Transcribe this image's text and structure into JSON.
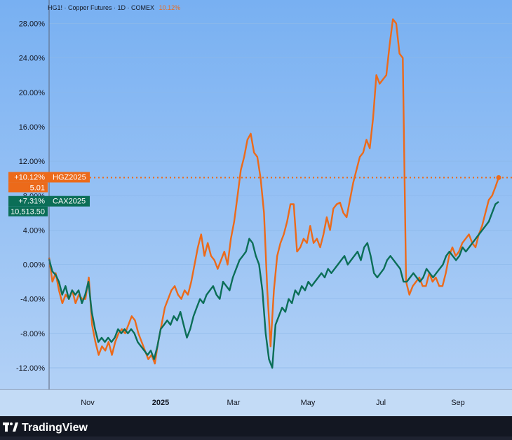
{
  "header": {
    "symbol": "HG1! · Copper Futures · 1D · COMEX",
    "change": "10.12%"
  },
  "brand": "TradingView",
  "colors": {
    "bg_top": "#78b0f2",
    "bg_bottom": "#b6d3f6",
    "hgz": "#ec6a1a",
    "cax": "#0b6e57",
    "grid": "#8db8ea",
    "axis_text": "#131722"
  },
  "labels": {
    "hgz": {
      "pct": "+10.12%",
      "name": "HGZ2025",
      "price": "5.01"
    },
    "cax": {
      "pct": "+7.31%",
      "name": "CAX2025",
      "price": "10,513.50"
    }
  },
  "chart_data": {
    "type": "line",
    "x_ticks": [
      "Nov",
      "2025",
      "Mar",
      "May",
      "Jul",
      "Sep"
    ],
    "y_ticks": [
      "28.00%",
      "24.00%",
      "20.00%",
      "16.00%",
      "12.00%",
      "8.00%",
      "4.00%",
      "0.00%",
      "-4.00%",
      "-8.00%",
      "-12.00%"
    ],
    "ylim": [
      -14.3,
      30.3
    ],
    "series": [
      {
        "name": "HGZ2025",
        "values": [
          0.8,
          -2.0,
          -1.0,
          -3.0,
          -4.5,
          -3.5,
          -4.0,
          -3.0,
          -4.5,
          -3.5,
          -4.0,
          -4.0,
          -1.5,
          -7.0,
          -9.0,
          -10.5,
          -9.5,
          -10.0,
          -9.0,
          -10.5,
          -9.0,
          -8.0,
          -7.5,
          -8.0,
          -7.0,
          -6.0,
          -6.5,
          -8.0,
          -9.0,
          -10.0,
          -11.0,
          -10.5,
          -11.5,
          -9.0,
          -7.0,
          -5.0,
          -4.0,
          -3.0,
          -2.5,
          -3.5,
          -4.0,
          -3.0,
          -3.5,
          -2.0,
          0.0,
          2.0,
          3.5,
          1.0,
          2.5,
          1.0,
          0.5,
          -0.5,
          0.5,
          1.5,
          0.0,
          3.0,
          5.0,
          8.0,
          11.0,
          12.5,
          14.5,
          15.2,
          13.0,
          12.5,
          10.0,
          6.0,
          -3.0,
          -9.5,
          -3.0,
          1.0,
          2.5,
          3.5,
          5.0,
          7.0,
          7.0,
          1.5,
          2.0,
          3.0,
          2.5,
          4.5,
          2.5,
          3.0,
          2.0,
          3.5,
          5.5,
          4.0,
          6.5,
          7.0,
          7.2,
          6.0,
          5.5,
          7.5,
          9.5,
          11.0,
          12.5,
          13.0,
          14.5,
          13.5,
          17.0,
          22.0,
          21.0,
          21.5,
          22.0,
          25.5,
          28.5,
          28.0,
          24.5,
          24.0,
          -2.0,
          -3.5,
          -2.5,
          -2.0,
          -1.5,
          -2.5,
          -2.5,
          -1.0,
          -2.0,
          -1.5,
          -2.5,
          -2.5,
          -1.0,
          1.0,
          2.0,
          1.0,
          1.5,
          2.5,
          3.0,
          3.5,
          2.5,
          2.0,
          3.5,
          4.5,
          6.0,
          7.5,
          8.0,
          9.0,
          10.1
        ]
      },
      {
        "name": "CAX2025",
        "values": [
          0.6,
          -0.8,
          -1.2,
          -2.0,
          -3.5,
          -2.5,
          -4.0,
          -3.0,
          -3.5,
          -3.0,
          -4.5,
          -3.5,
          -2.0,
          -5.5,
          -7.5,
          -9.0,
          -8.5,
          -9.0,
          -8.5,
          -9.0,
          -8.5,
          -7.5,
          -8.0,
          -7.5,
          -8.0,
          -7.5,
          -8.0,
          -9.0,
          -9.5,
          -10.0,
          -10.5,
          -10.0,
          -11.0,
          -9.5,
          -7.5,
          -7.0,
          -6.5,
          -7.0,
          -6.0,
          -6.5,
          -5.5,
          -7.0,
          -8.5,
          -7.5,
          -6.0,
          -5.0,
          -4.0,
          -4.5,
          -3.5,
          -3.0,
          -2.5,
          -3.5,
          -4.0,
          -2.0,
          -2.5,
          -3.0,
          -1.5,
          -0.5,
          0.5,
          1.0,
          1.5,
          3.0,
          2.5,
          1.0,
          0.0,
          -3.0,
          -8.0,
          -11.0,
          -12.0,
          -7.0,
          -6.0,
          -5.0,
          -5.5,
          -4.0,
          -4.5,
          -3.0,
          -3.5,
          -2.5,
          -3.0,
          -2.0,
          -2.5,
          -2.0,
          -1.5,
          -1.0,
          -1.5,
          -0.5,
          -1.0,
          -0.5,
          0.0,
          0.5,
          1.0,
          0.0,
          0.5,
          1.0,
          1.5,
          0.5,
          2.0,
          2.5,
          1.0,
          -1.0,
          -1.5,
          -1.0,
          -0.5,
          0.5,
          1.0,
          0.5,
          0.0,
          -0.5,
          -2.0,
          -2.0,
          -1.5,
          -1.0,
          -1.5,
          -2.0,
          -1.5,
          -0.5,
          -1.0,
          -1.5,
          -1.0,
          -0.5,
          0.0,
          1.0,
          1.5,
          1.0,
          0.5,
          1.0,
          2.0,
          1.5,
          2.0,
          2.5,
          3.0,
          3.5,
          4.0,
          4.5,
          5.0,
          6.0,
          7.0,
          7.3
        ]
      }
    ]
  }
}
